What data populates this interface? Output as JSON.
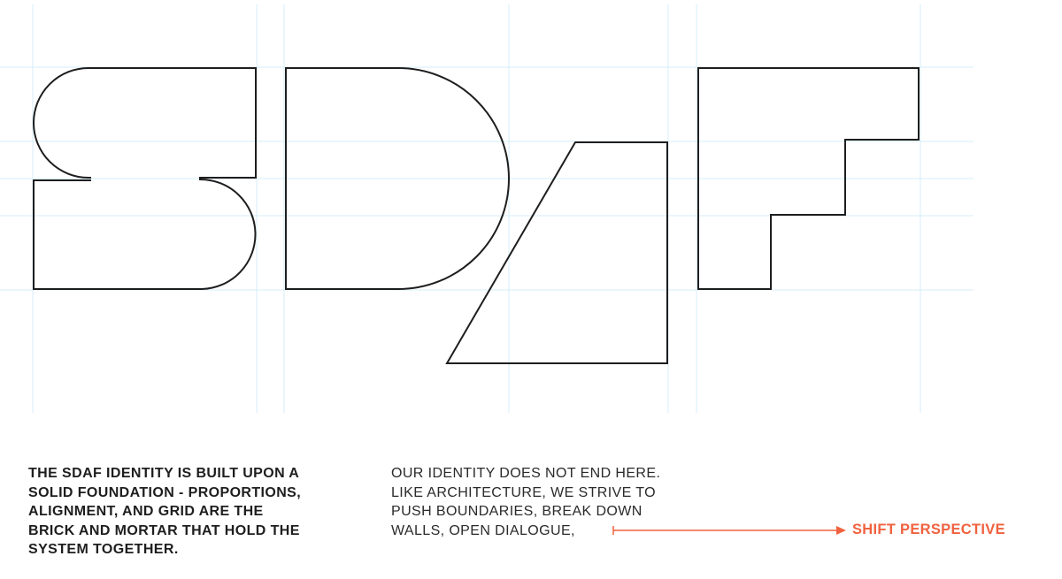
{
  "logo_text": "SDAF",
  "colors": {
    "grid": "#d6ecf8",
    "outline": "#1e1e1e",
    "accent": "#f0623f"
  },
  "left_text": [
    "THE SDAF IDENTITY IS BUILT UPON A",
    "SOLID FOUNDATION - PROPORTIONS,",
    "ALIGNMENT, AND GRID ARE THE",
    "BRICK AND MORTAR THAT HOLD THE",
    "SYSTEM TOGETHER."
  ],
  "right_text": [
    "OUR IDENTITY DOES NOT END HERE.",
    "LIKE ARCHITECTURE, WE STRIVE TO",
    "PUSH BOUNDARIES, BREAK DOWN",
    "WALLS, OPEN DIALOGUE,"
  ],
  "accent_label": "SHIFT PERSPECTIVE"
}
